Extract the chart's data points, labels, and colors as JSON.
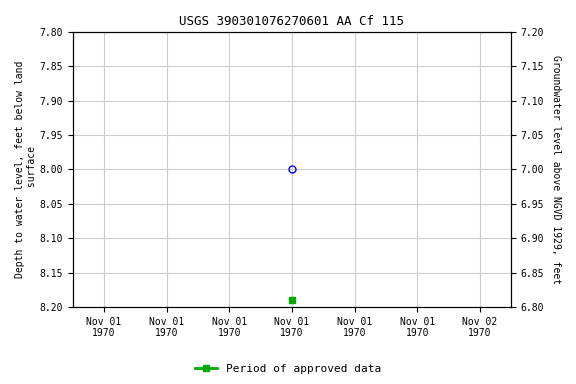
{
  "title": "USGS 390301076270601 AA Cf 115",
  "left_ylabel": "Depth to water level, feet below land\n surface",
  "right_ylabel": "Groundwater level above NGVD 1929, feet",
  "x_tick_labels": [
    "Nov 01\n1970",
    "Nov 01\n1970",
    "Nov 01\n1970",
    "Nov 01\n1970",
    "Nov 01\n1970",
    "Nov 01\n1970",
    "Nov 02\n1970"
  ],
  "ylim_left_top": 7.8,
  "ylim_left_bottom": 8.2,
  "ylim_right_top": 7.2,
  "ylim_right_bottom": 6.8,
  "yticks_left": [
    7.8,
    7.85,
    7.9,
    7.95,
    8.0,
    8.05,
    8.1,
    8.15,
    8.2
  ],
  "yticks_right": [
    7.2,
    7.15,
    7.1,
    7.05,
    7.0,
    6.95,
    6.9,
    6.85,
    6.8
  ],
  "data_point_x": 3,
  "data_point_y_depth": 8.0,
  "data_point_color": "#0000ff",
  "data_point_marker": "o",
  "data_point2_x": 3,
  "data_point2_y_depth": 8.19,
  "data_point2_color": "#00aa00",
  "data_point2_marker": "s",
  "background_color": "#ffffff",
  "grid_color": "#cccccc",
  "legend_label": "Period of approved data",
  "legend_color": "#00aa00",
  "x_positions": [
    0,
    1,
    2,
    3,
    4,
    5,
    6
  ],
  "xlim": [
    -0.5,
    6.5
  ]
}
